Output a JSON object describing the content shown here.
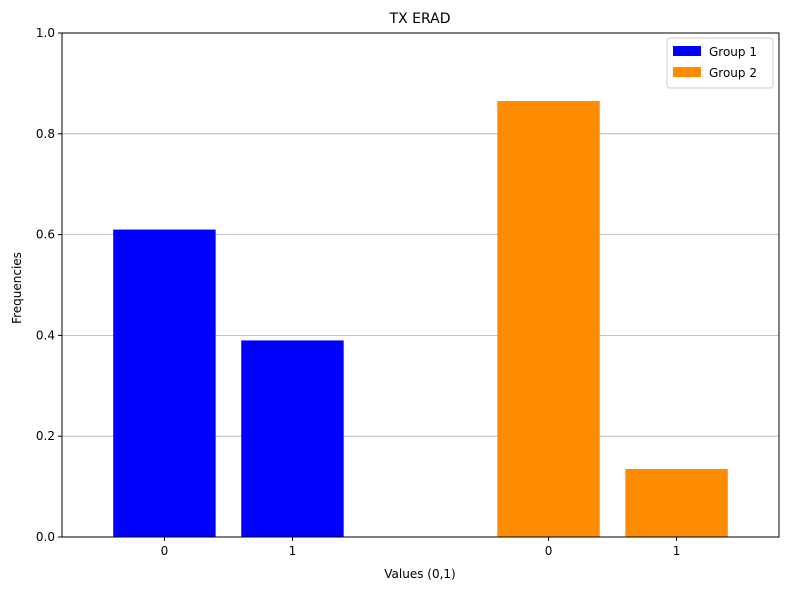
{
  "chart_data": {
    "type": "bar",
    "title": "TX ERAD",
    "xlabel": "Values (0,1)",
    "ylabel": "Frequencies",
    "ylim": [
      0,
      1.0
    ],
    "yticks": [
      "0.0",
      "0.2",
      "0.4",
      "0.6",
      "0.8",
      "1.0"
    ],
    "grid": "y-major",
    "legend_position": "top-right",
    "series": [
      {
        "name": "Group 1",
        "color": "#0000ff",
        "categories": [
          "0",
          "1"
        ],
        "values": [
          0.61,
          0.39
        ]
      },
      {
        "name": "Group 2",
        "color": "#ff8c00",
        "categories": [
          "0",
          "1"
        ],
        "values": [
          0.865,
          0.135
        ]
      }
    ]
  }
}
